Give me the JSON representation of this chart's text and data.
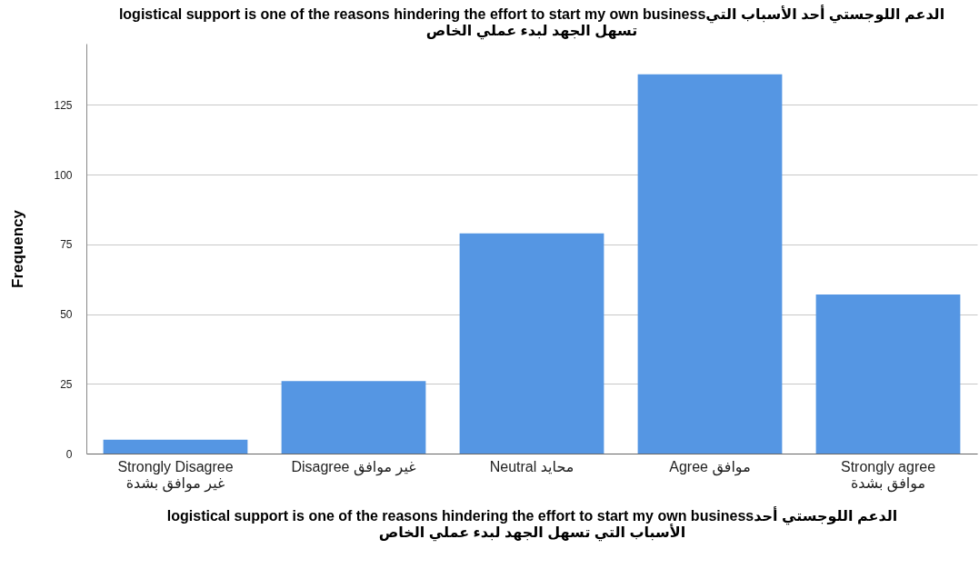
{
  "chart_data": {
    "type": "bar",
    "title": "logistical support is one of the reasons hindering the effort to start my own businessالدعم اللوجستي أحد الأسباب التي\nتسهل الجهد لبدء عملي الخاص",
    "xlabel": "logistical support is one of the reasons hindering the effort to start my own businessالدعم اللوجستي أحد\nالأسباب التي تسهل الجهد لبدء عملي الخاص",
    "ylabel": "Frequency",
    "categories": [
      "Strongly Disagree\nغير موافق بشدة",
      "Disagree غير موافق",
      "Neutral محايد",
      "Agree موافق",
      "Strongly agree\nموافق بشدة"
    ],
    "values": [
      5,
      26,
      79,
      136,
      57
    ],
    "color": "#5596e3",
    "ylim": [
      0,
      147
    ],
    "yticks": [
      0,
      25,
      50,
      75,
      100,
      125
    ],
    "grid": "y"
  }
}
